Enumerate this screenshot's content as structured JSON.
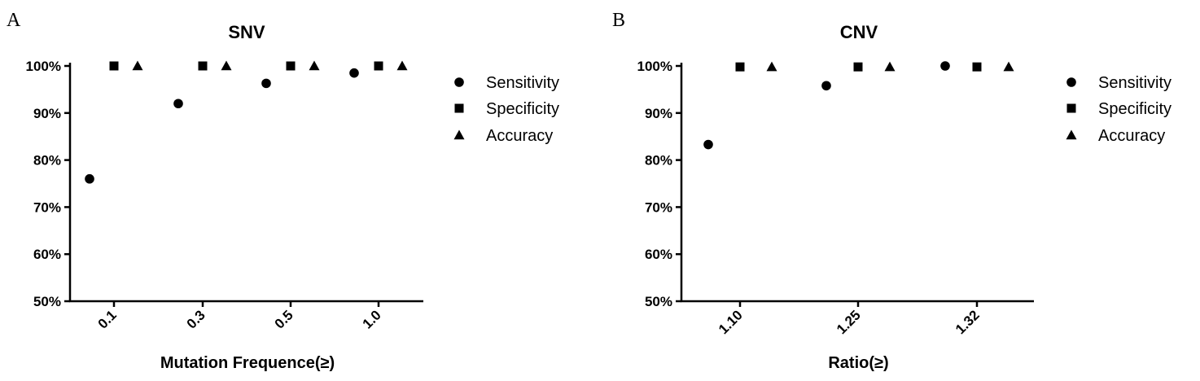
{
  "chart_data": [
    {
      "type": "scatter",
      "panel_label": "A",
      "title": "SNV",
      "xlabel": "Mutation Frequence(≥)",
      "ylabel": "",
      "categories": [
        "0.1",
        "0.3",
        "0.5",
        "1.0"
      ],
      "ylim": [
        50,
        100
      ],
      "yticks": [
        "50%",
        "60%",
        "70%",
        "80%",
        "90%",
        "100%"
      ],
      "legend_position": "right",
      "series": [
        {
          "name": "Sensitivity",
          "marker": "circle",
          "values": [
            76.0,
            92.0,
            96.3,
            98.5
          ]
        },
        {
          "name": "Specificity",
          "marker": "square",
          "values": [
            100,
            100,
            100,
            100
          ]
        },
        {
          "name": "Accuracy",
          "marker": "triangle",
          "values": [
            100,
            100,
            100,
            100
          ]
        }
      ]
    },
    {
      "type": "scatter",
      "panel_label": "B",
      "title": "CNV",
      "xlabel": "Ratio(≥)",
      "ylabel": "",
      "categories": [
        "1.10",
        "1.25",
        "1.32"
      ],
      "ylim": [
        50,
        100
      ],
      "yticks": [
        "50%",
        "60%",
        "70%",
        "80%",
        "90%",
        "100%"
      ],
      "legend_position": "right",
      "series": [
        {
          "name": "Sensitivity",
          "marker": "circle",
          "values": [
            83.3,
            95.8,
            100
          ]
        },
        {
          "name": "Specificity",
          "marker": "square",
          "values": [
            99.8,
            99.8,
            99.8
          ]
        },
        {
          "name": "Accuracy",
          "marker": "triangle",
          "values": [
            99.8,
            99.8,
            99.8
          ]
        }
      ]
    }
  ]
}
